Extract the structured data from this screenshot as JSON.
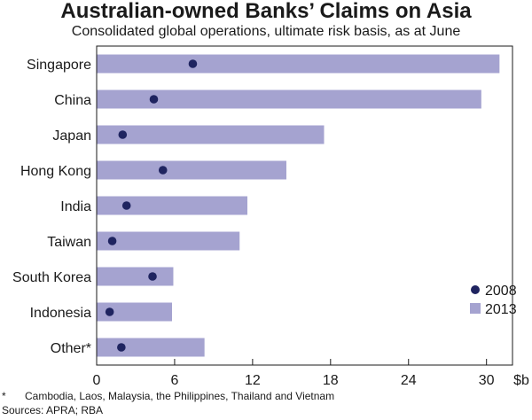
{
  "title": "Australian-owned Banks’ Claims on Asia",
  "subtitle": "Consolidated global operations, ultimate risk basis, as at June",
  "unit_label": "$b",
  "footnote": {
    "marker": "*",
    "text": "Cambodia, Laos, Malaysia, the Philippines, Thailand and Vietnam"
  },
  "sources": "Sources: APRA; RBA",
  "chart_data": {
    "type": "bar",
    "orientation": "horizontal",
    "title": "Australian-owned Banks’ Claims on Asia",
    "subtitle": "Consolidated global operations, ultimate risk basis, as at June",
    "xlabel": "$b",
    "ylabel": "",
    "xlim": [
      0,
      32
    ],
    "xticks": [
      0,
      6,
      12,
      18,
      24,
      30
    ],
    "grid": false,
    "legend_position": "bottom-right",
    "categories": [
      "Singapore",
      "China",
      "Japan",
      "Hong Kong",
      "India",
      "Taiwan",
      "South Korea",
      "Indonesia",
      "Other*"
    ],
    "series": [
      {
        "name": "2008",
        "mark": "dot",
        "color": "#1f2460",
        "values": [
          7.4,
          4.4,
          2.0,
          5.1,
          2.3,
          1.2,
          4.3,
          1.0,
          1.9
        ]
      },
      {
        "name": "2013",
        "mark": "bar",
        "color": "#a5a3d0",
        "values": [
          31.0,
          29.6,
          17.5,
          14.6,
          11.6,
          11.0,
          5.9,
          5.8,
          8.3
        ]
      }
    ]
  }
}
